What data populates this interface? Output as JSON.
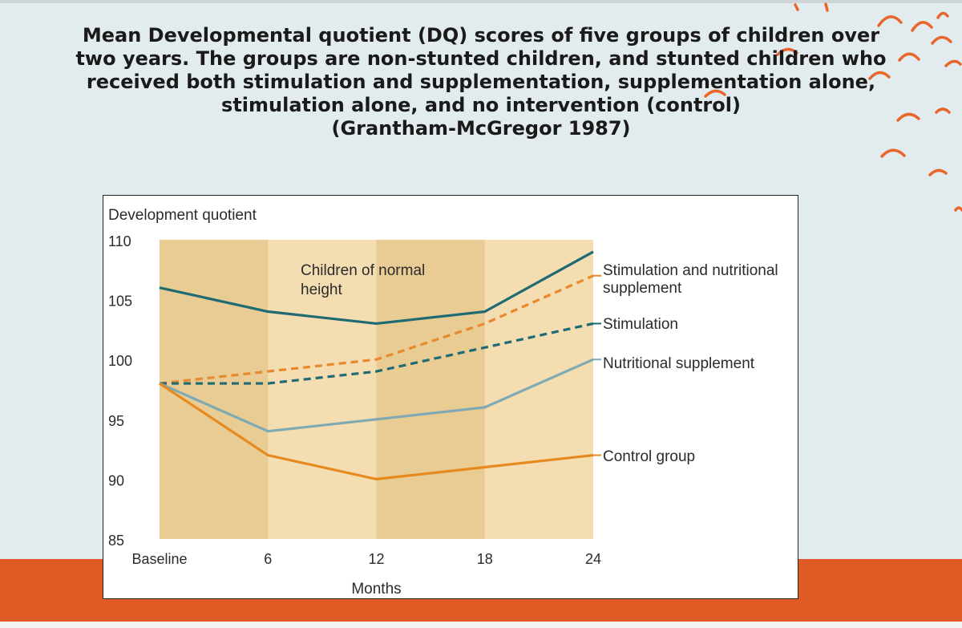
{
  "slide": {
    "title": "Mean Developmental quotient (DQ) scores of five groups of children over\ntwo years. The groups are non-stunted children, and stunted children who\nreceived both stimulation and supplementation, supplementation alone,\nstimulation alone, and no intervention (control)\n(Grantham-McGregor 1987)",
    "colors": {
      "background": "#e2ebee",
      "accent": "#e05a26"
    }
  },
  "chart_data": {
    "type": "line",
    "title": "",
    "ylabel": "Development quotient",
    "xlabel": "Months",
    "categories": [
      "Baseline",
      "6",
      "12",
      "18",
      "24"
    ],
    "x": [
      0,
      6,
      12,
      18,
      24
    ],
    "xlim": [
      0,
      24
    ],
    "ylim": [
      85,
      110
    ],
    "yticks": [
      110,
      105,
      100,
      95,
      90,
      85
    ],
    "grid": false,
    "plot_background": "#f3ddb1",
    "band_background": "#e9cc94",
    "series": [
      {
        "name": "Children of normal height",
        "values": [
          106,
          104,
          103,
          104,
          109
        ],
        "color": "#1f6a73",
        "dash": false,
        "label_style": "inside"
      },
      {
        "name": "Stimulation and nutritional supplement",
        "values": [
          98,
          99,
          100,
          103,
          107
        ],
        "color": "#e9892d",
        "dash": true,
        "label_style": "right"
      },
      {
        "name": "Stimulation",
        "values": [
          98,
          98,
          99,
          101,
          103
        ],
        "color": "#1f6a73",
        "dash": true,
        "label_style": "right"
      },
      {
        "name": "Nutritional supplement",
        "values": [
          98,
          94,
          95,
          96,
          100
        ],
        "color": "#7faab3",
        "dash": false,
        "label_style": "right"
      },
      {
        "name": "Control group",
        "values": [
          98,
          92,
          90,
          91,
          92
        ],
        "color": "#e68a1f",
        "dash": false,
        "label_style": "right"
      }
    ]
  }
}
